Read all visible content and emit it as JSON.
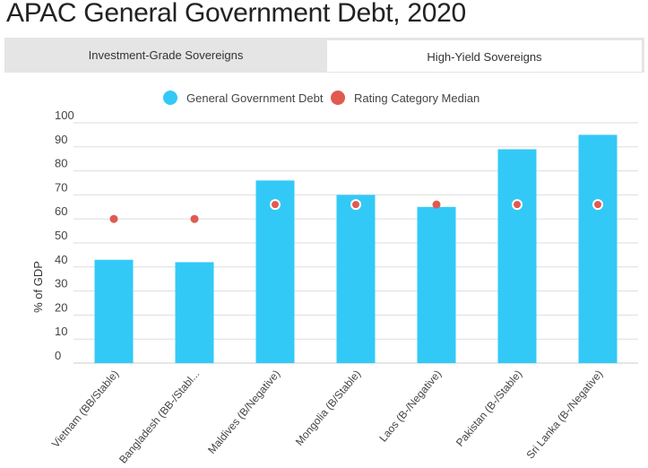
{
  "page": {
    "title": "APAC General Government Debt, 2020"
  },
  "tabs": [
    {
      "label": "Investment-Grade Sovereigns",
      "active": false
    },
    {
      "label": "High-Yield Sovereigns",
      "active": true
    }
  ],
  "colors": {
    "debt": "#33c9f7",
    "median": "#e05a4f",
    "grid": "#dddddd"
  },
  "chart_data": {
    "type": "bar",
    "title": "APAC General Government Debt, 2020",
    "ylabel": "% of GDP",
    "xlabel": "",
    "ylim": [
      0,
      100
    ],
    "yticks": [
      0,
      10,
      20,
      30,
      40,
      50,
      60,
      70,
      80,
      90,
      100
    ],
    "legend_position": "top-center",
    "categories": [
      "Vietnam (BB/Stable)",
      "Bangladesh (BB-/Stabl...",
      "Maldives (B/Negative)",
      "Mongolia (B/Stable)",
      "Laos (B-/Negative)",
      "Pakistan (B-/Stable)",
      "Sri Lanka (B-/Negative)"
    ],
    "series": [
      {
        "name": "General Government Debt",
        "kind": "bar",
        "values": [
          43,
          42,
          76,
          70,
          65,
          89,
          95
        ]
      },
      {
        "name": "Rating Category Median",
        "kind": "point",
        "values": [
          60,
          60,
          66,
          66,
          66,
          66,
          66
        ]
      }
    ]
  }
}
